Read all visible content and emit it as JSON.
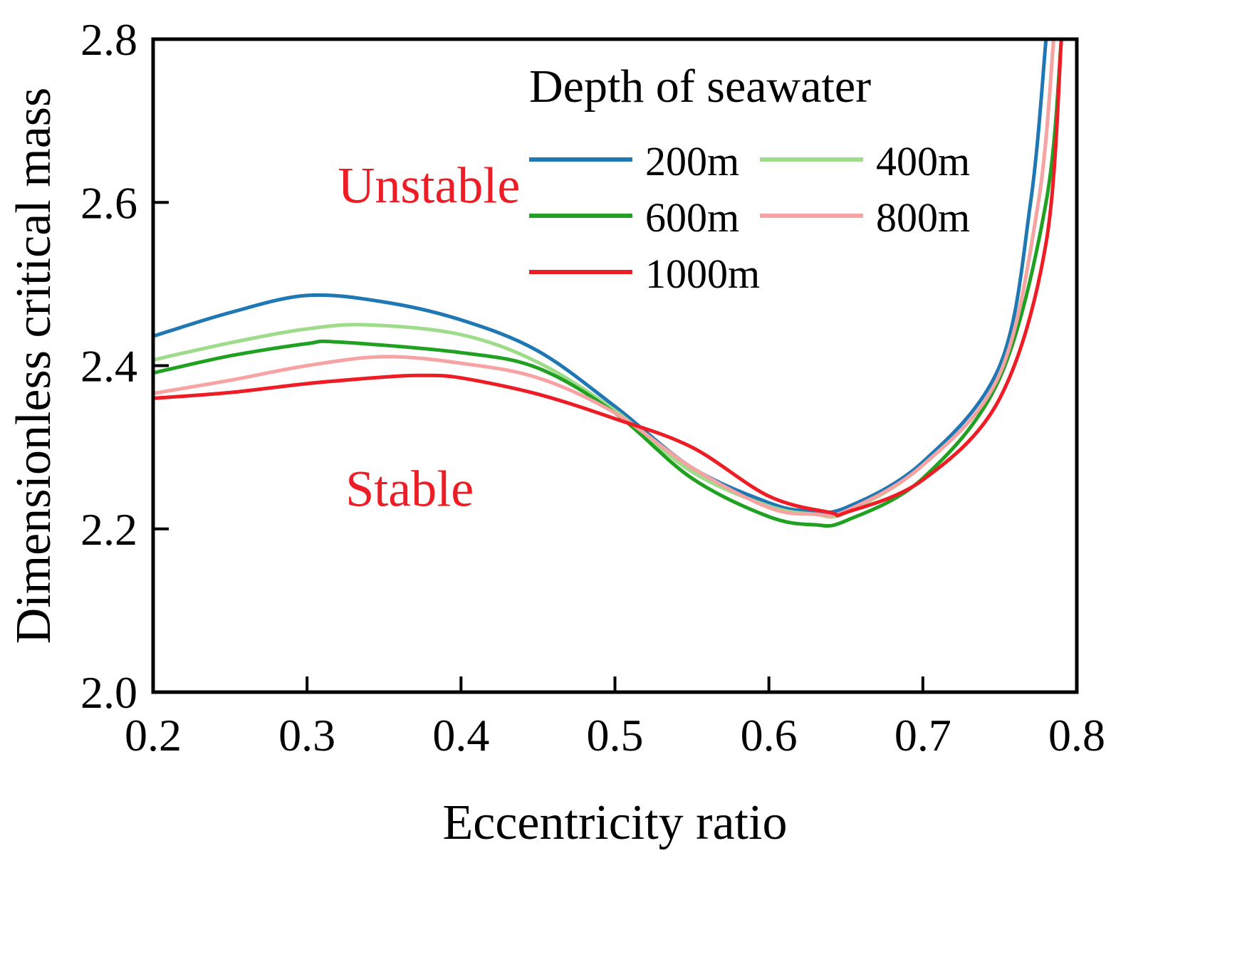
{
  "chart_data": {
    "type": "line",
    "title": "",
    "xlabel": "Eccentricity ratio",
    "ylabel": "Dimensionless critical mass",
    "xlim": [
      0.2,
      0.8
    ],
    "ylim": [
      2.0,
      2.8
    ],
    "xticks": [
      0.2,
      0.3,
      0.4,
      0.5,
      0.6,
      0.7,
      0.8
    ],
    "yticks": [
      2.0,
      2.2,
      2.4,
      2.6,
      2.8
    ],
    "xtick_labels": [
      "0.2",
      "0.3",
      "0.4",
      "0.5",
      "0.6",
      "0.7",
      "0.8"
    ],
    "ytick_labels": [
      "2.0",
      "2.2",
      "2.4",
      "2.6",
      "2.8"
    ],
    "grid": false,
    "legend": {
      "title": "Depth of seawater",
      "position": "top-right",
      "columns": 2
    },
    "annotations": [
      {
        "text": "Unstable",
        "x": 0.32,
        "y": 2.6,
        "color": "#ee1c25"
      },
      {
        "text": "Stable",
        "x": 0.325,
        "y": 2.228,
        "color": "#ee1c25"
      }
    ],
    "series": [
      {
        "name": "200m",
        "color": "#1f77b4",
        "x": [
          0.2,
          0.25,
          0.3,
          0.35,
          0.4,
          0.45,
          0.5,
          0.55,
          0.6,
          0.625,
          0.65,
          0.7,
          0.75,
          0.77,
          0.78
        ],
        "y": [
          2.436,
          2.465,
          2.486,
          2.478,
          2.456,
          2.418,
          2.35,
          2.275,
          2.232,
          2.222,
          2.226,
          2.282,
          2.4,
          2.6,
          2.8
        ]
      },
      {
        "name": "400m",
        "color": "#9edb8a",
        "x": [
          0.2,
          0.25,
          0.3,
          0.34,
          0.4,
          0.45,
          0.5,
          0.55,
          0.6,
          0.63,
          0.65,
          0.7,
          0.75,
          0.775,
          0.785
        ],
        "y": [
          2.407,
          2.428,
          2.445,
          2.45,
          2.438,
          2.404,
          2.345,
          2.27,
          2.228,
          2.218,
          2.22,
          2.278,
          2.39,
          2.6,
          2.8
        ]
      },
      {
        "name": "600m",
        "color": "#21a121",
        "x": [
          0.2,
          0.25,
          0.3,
          0.32,
          0.4,
          0.45,
          0.5,
          0.55,
          0.6,
          0.63,
          0.65,
          0.7,
          0.75,
          0.78,
          0.79
        ],
        "y": [
          2.391,
          2.412,
          2.427,
          2.429,
          2.416,
          2.397,
          2.342,
          2.262,
          2.215,
          2.205,
          2.21,
          2.262,
          2.385,
          2.6,
          2.8
        ]
      },
      {
        "name": "800m",
        "color": "#f8a3a3",
        "x": [
          0.2,
          0.25,
          0.3,
          0.35,
          0.4,
          0.45,
          0.5,
          0.55,
          0.6,
          0.63,
          0.65,
          0.7,
          0.75,
          0.775,
          0.785
        ],
        "y": [
          2.366,
          2.382,
          2.4,
          2.411,
          2.403,
          2.385,
          2.342,
          2.275,
          2.226,
          2.218,
          2.222,
          2.278,
          2.39,
          2.6,
          2.8
        ]
      },
      {
        "name": "1000m",
        "color": "#ee1c25",
        "x": [
          0.2,
          0.25,
          0.3,
          0.35,
          0.375,
          0.4,
          0.45,
          0.5,
          0.55,
          0.6,
          0.64,
          0.65,
          0.7,
          0.75,
          0.78,
          0.79
        ],
        "y": [
          2.36,
          2.367,
          2.378,
          2.386,
          2.388,
          2.385,
          2.365,
          2.335,
          2.3,
          2.24,
          2.22,
          2.22,
          2.26,
          2.36,
          2.55,
          2.8
        ]
      }
    ]
  }
}
